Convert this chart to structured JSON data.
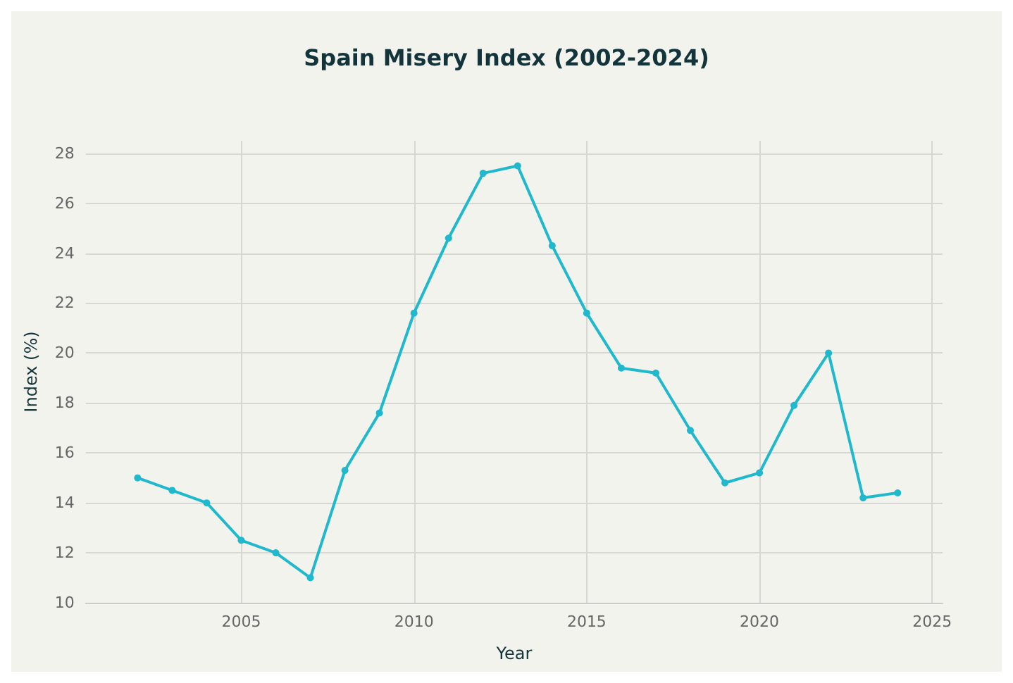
{
  "chart_data": {
    "type": "line",
    "title": "Spain Misery Index (2002-2024)",
    "xlabel": "Year",
    "ylabel": "Index (%)",
    "x": [
      2002,
      2003,
      2004,
      2005,
      2006,
      2007,
      2008,
      2009,
      2010,
      2011,
      2012,
      2013,
      2014,
      2015,
      2016,
      2017,
      2018,
      2019,
      2020,
      2021,
      2022,
      2023,
      2024
    ],
    "series": [
      {
        "color": "#1fb8cd",
        "values": [
          15.0,
          14.5,
          14.0,
          12.5,
          12.0,
          11.0,
          15.3,
          17.6,
          21.6,
          24.6,
          27.2,
          27.5,
          24.3,
          21.6,
          19.4,
          19.2,
          16.9,
          14.8,
          15.2,
          17.9,
          20.0,
          14.2,
          14.4
        ]
      }
    ],
    "xlim": [
      2000.5,
      2025.3
    ],
    "xticks": [
      2005,
      2010,
      2015,
      2020,
      2025
    ],
    "ylim": [
      10,
      28.5
    ],
    "yticks": [
      10,
      12,
      14,
      16,
      18,
      20,
      22,
      24,
      26,
      28
    ],
    "grid": true,
    "marker": "circle",
    "line_style": "solid"
  }
}
